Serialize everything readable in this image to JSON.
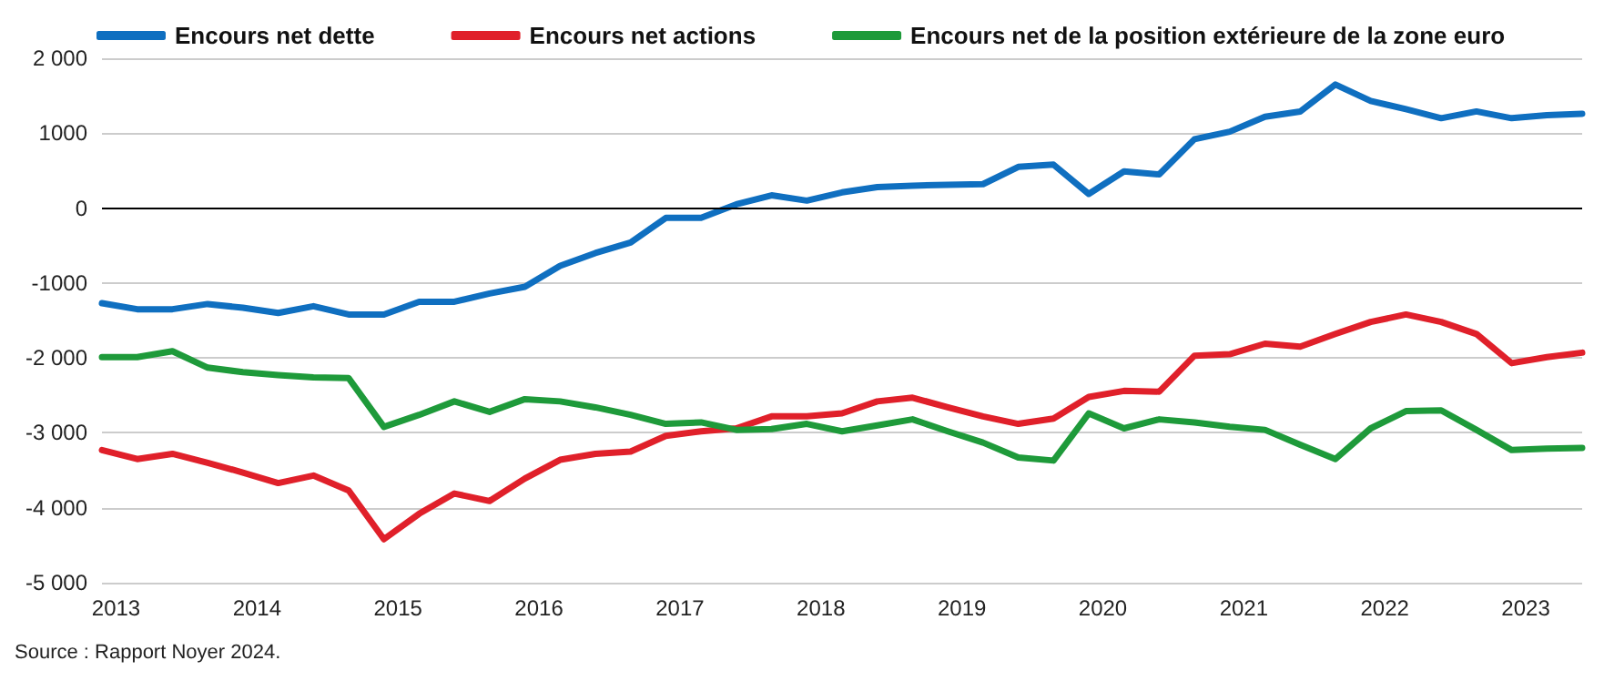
{
  "chart_data": {
    "type": "line",
    "x": [
      2012.9,
      2013.15,
      2013.4,
      2013.65,
      2013.9,
      2014.15,
      2014.4,
      2014.65,
      2014.9,
      2015.15,
      2015.4,
      2015.65,
      2015.9,
      2016.15,
      2016.4,
      2016.65,
      2016.9,
      2017.15,
      2017.4,
      2017.65,
      2017.9,
      2018.15,
      2018.4,
      2018.65,
      2018.9,
      2019.15,
      2019.4,
      2019.65,
      2019.9,
      2020.15,
      2020.4,
      2020.65,
      2020.9,
      2021.15,
      2021.4,
      2021.65,
      2021.9,
      2022.15,
      2022.4,
      2022.65,
      2022.9,
      2023.15,
      2023.4
    ],
    "series": [
      {
        "name": "Encours net dette",
        "color": "#0f6fc0",
        "values": [
          -1270,
          -1350,
          -1350,
          -1280,
          -1330,
          -1400,
          -1310,
          -1420,
          -1420,
          -1250,
          -1250,
          -1140,
          -1050,
          -770,
          -600,
          -460,
          -130,
          -130,
          50,
          170,
          100,
          210,
          280,
          300,
          310,
          320,
          550,
          580,
          190,
          490,
          450,
          920,
          1020,
          1220,
          1290,
          1650,
          1430,
          1320,
          1200,
          1290,
          1200,
          1240,
          1260
        ]
      },
      {
        "name": "Encours net actions",
        "color": "#e0202a",
        "values": [
          -3230,
          -3350,
          -3280,
          -3400,
          -3530,
          -3670,
          -3570,
          -3770,
          -4420,
          -4080,
          -3810,
          -3910,
          -3610,
          -3360,
          -3280,
          -3250,
          -3040,
          -2980,
          -2940,
          -2780,
          -2780,
          -2740,
          -2580,
          -2530,
          -2660,
          -2780,
          -2880,
          -2810,
          -2520,
          -2440,
          -2450,
          -1970,
          -1950,
          -1810,
          -1850,
          -1680,
          -1520,
          -1420,
          -1520,
          -1680,
          -2070,
          -1990,
          -1930
        ]
      },
      {
        "name": "Encours net de la position extérieure de la zone euro",
        "color": "#1e9a3a",
        "values": [
          -1990,
          -1990,
          -1910,
          -2130,
          -2190,
          -2230,
          -2260,
          -2270,
          -2920,
          -2760,
          -2580,
          -2720,
          -2550,
          -2580,
          -2660,
          -2760,
          -2880,
          -2860,
          -2960,
          -2950,
          -2880,
          -2980,
          -2900,
          -2820,
          -2980,
          -3130,
          -3330,
          -3370,
          -2740,
          -2940,
          -2820,
          -2860,
          -2920,
          -2960,
          -3160,
          -3350,
          -2940,
          -2710,
          -2700,
          -2960,
          -3230,
          -3210,
          -3200
        ]
      }
    ],
    "xlim": [
      2012.9,
      2023.4
    ],
    "xticks": [
      2013,
      2014,
      2015,
      2016,
      2017,
      2018,
      2019,
      2020,
      2021,
      2022,
      2023
    ],
    "ylim": [
      -5000,
      2000
    ],
    "yticks": [
      {
        "value": -5000,
        "label": "-5 000"
      },
      {
        "value": -4000,
        "label": "-4 000"
      },
      {
        "value": -3000,
        "label": "-3 000"
      },
      {
        "value": -2000,
        "label": "-2 000"
      },
      {
        "value": -1000,
        "label": "-1000"
      },
      {
        "value": 0,
        "label": "0"
      },
      {
        "value": 1000,
        "label": "1000"
      },
      {
        "value": 2000,
        "label": "2 000"
      }
    ],
    "ref_lines": [
      {
        "axis": "y",
        "value": 0,
        "color": "#000000"
      }
    ],
    "grid": "y",
    "legend": "top",
    "marker": "none",
    "line_style": "solid",
    "annotations": [
      "Source : Rapport Noyer 2024."
    ]
  }
}
